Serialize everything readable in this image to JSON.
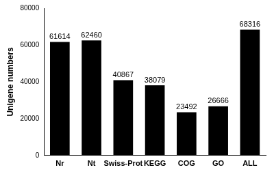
{
  "chart_data": {
    "type": "bar",
    "y_label": "Unigene numbers",
    "categories": [
      "Nr",
      "Nt",
      "Swiss-Prot",
      "KEGG",
      "COG",
      "GO",
      "ALL"
    ],
    "values": [
      61614,
      62460,
      40867,
      38079,
      23492,
      26666,
      68316
    ],
    "color": "#000000",
    "ylim": [
      0,
      80000
    ],
    "yticks": [
      0,
      20000,
      40000,
      60000,
      80000
    ],
    "grid": false,
    "data_labels": true
  }
}
